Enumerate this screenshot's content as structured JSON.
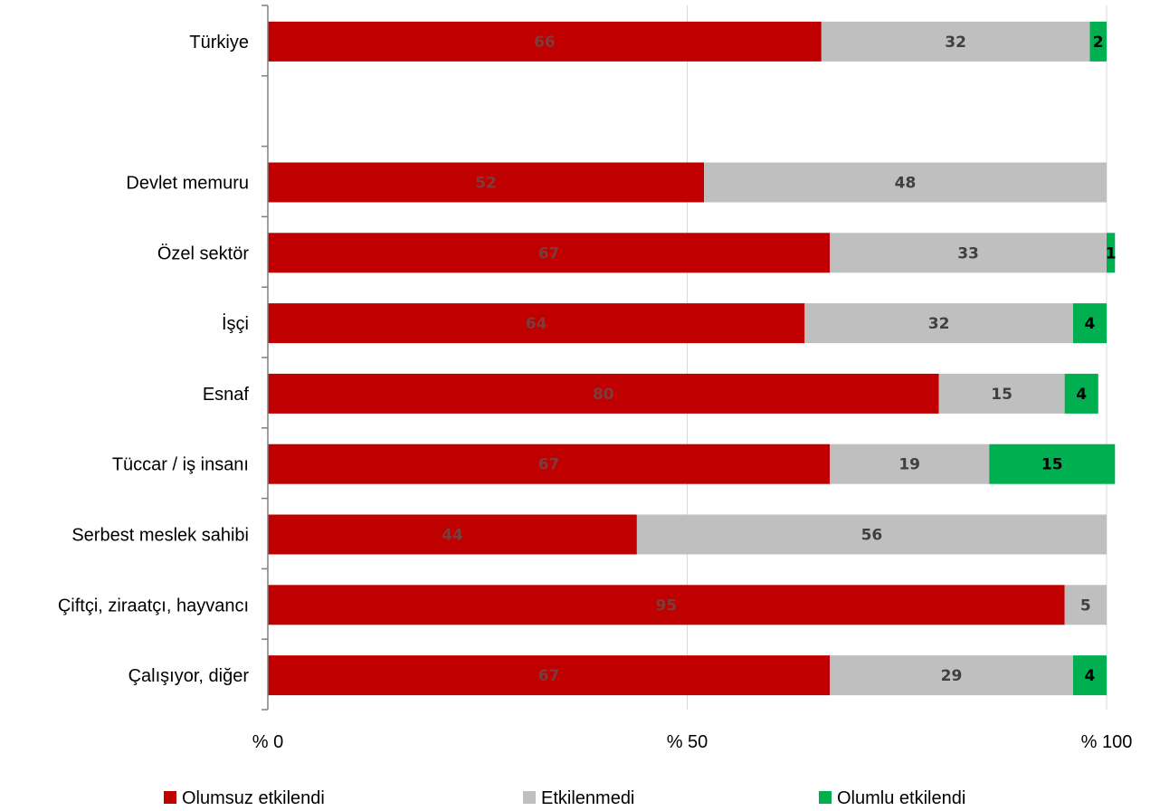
{
  "chart_data": {
    "type": "bar",
    "orientation": "horizontal",
    "stacked": true,
    "xlim": [
      0,
      100
    ],
    "x_ticks": [
      0,
      50,
      100
    ],
    "x_tick_labels": [
      "% 0",
      "% 50",
      "% 100"
    ],
    "gridlines": true,
    "legend_position": "bottom",
    "categories": [
      "Türkiye",
      "",
      "Devlet memuru",
      "Özel sektör",
      "İşçi",
      "Esnaf",
      "Tüccar / iş insanı",
      "Serbest meslek sahibi",
      "Çiftçi, ziraatçı, hayvancı",
      "Çalışıyor, diğer"
    ],
    "series": [
      {
        "name": "Olumsuz etkilendi",
        "color": "#c00000",
        "label_color": "#7f3a3a",
        "values": [
          66,
          null,
          52,
          67,
          64,
          80,
          67,
          44,
          95,
          67
        ]
      },
      {
        "name": "Etkilenmedi",
        "color": "#bfbfbf",
        "label_color": "#404040",
        "values": [
          32,
          null,
          48,
          33,
          32,
          15,
          19,
          56,
          5,
          29
        ]
      },
      {
        "name": "Olumlu etkilendi",
        "color": "#00b050",
        "label_color": "#000000",
        "values": [
          2,
          null,
          0,
          1,
          4,
          4,
          15,
          0,
          0,
          4
        ]
      }
    ]
  }
}
